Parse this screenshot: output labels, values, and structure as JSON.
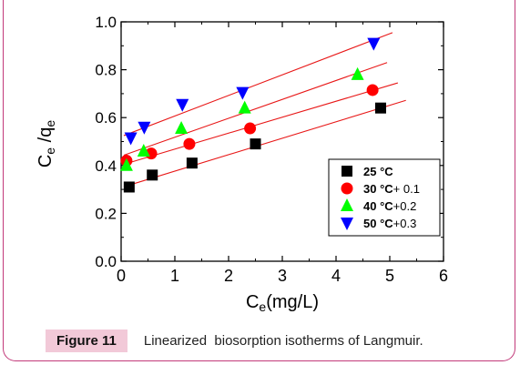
{
  "figure": {
    "label": "Figure 11",
    "caption": "Linearized  biosorption isotherms of Langmuir."
  },
  "chart_data": {
    "type": "scatter",
    "xlabel_main": "C",
    "xlabel_sub": "e",
    "xlabel_rest": "(mg/L)",
    "ylabel_c": "C",
    "ylabel_c_sub": "e",
    "ylabel_slash": " /q",
    "ylabel_q_sub": "e",
    "xlim": [
      0,
      6
    ],
    "ylim": [
      0,
      1.0
    ],
    "xticks": [
      "0",
      "1",
      "2",
      "3",
      "4",
      "5",
      "6"
    ],
    "yticks": [
      "0.0",
      "0.2",
      "0.4",
      "0.6",
      "0.8",
      "1.0"
    ],
    "grid": false,
    "legend_position": "right-middle",
    "series": [
      {
        "name_bold": "25 °C",
        "name_rest": "",
        "marker": "square",
        "color": "#000000",
        "x": [
          0.15,
          0.58,
          1.32,
          2.5,
          4.83
        ],
        "y": [
          0.31,
          0.36,
          0.41,
          0.49,
          0.64
        ],
        "fit": [
          [
            0.05,
            0.311
          ],
          [
            5.3,
            0.672
          ]
        ]
      },
      {
        "name_bold": "30 °C",
        "name_rest": "+ 0.1",
        "marker": "circle",
        "color": "#ff0000",
        "x": [
          0.1,
          0.56,
          1.27,
          2.4,
          4.68
        ],
        "y": [
          0.42,
          0.45,
          0.49,
          0.555,
          0.715
        ],
        "fit": [
          [
            0.05,
            0.405
          ],
          [
            5.15,
            0.745
          ]
        ]
      },
      {
        "name_bold": "40 °C",
        "name_rest": "+0.2",
        "marker": "triangle-up",
        "color": "#00ff00",
        "x": [
          0.1,
          0.42,
          1.12,
          2.3,
          4.4
        ],
        "y": [
          0.4,
          0.46,
          0.555,
          0.64,
          0.78
        ],
        "fit": [
          [
            0.05,
            0.443
          ],
          [
            4.95,
            0.83
          ]
        ]
      },
      {
        "name_bold": "50 °C",
        "name_rest": "+0.3",
        "marker": "triangle-down",
        "color": "#0000ff",
        "x": [
          0.18,
          0.43,
          1.14,
          2.26,
          4.7
        ],
        "y": [
          0.515,
          0.56,
          0.655,
          0.705,
          0.91
        ],
        "fit": [
          [
            0.05,
            0.525
          ],
          [
            5.05,
            0.955
          ]
        ]
      }
    ],
    "fit_color": "#e81818"
  }
}
